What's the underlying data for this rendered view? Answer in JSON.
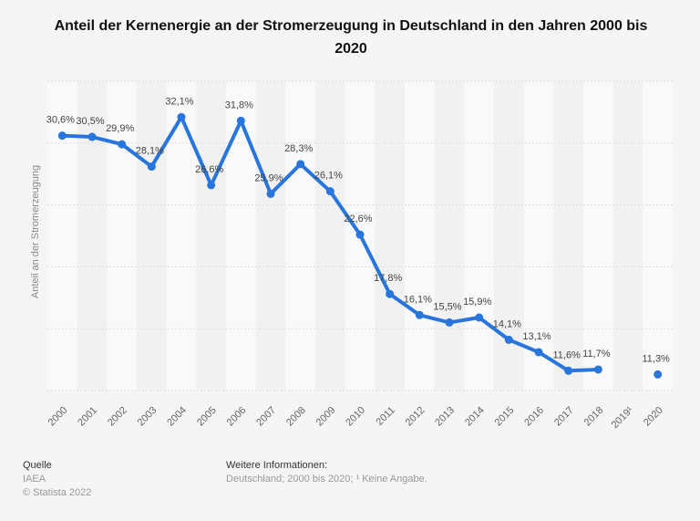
{
  "title": "Anteil der Kernenergie an der Stromerzeugung in Deutschland in den Jahren 2000 bis 2020",
  "chart_data": {
    "type": "line",
    "title": "Anteil der Kernenergie an der Stromerzeugung in Deutschland in den Jahren 2000 bis 2020",
    "xlabel": "",
    "ylabel": "Anteil an der Stromerzeugung",
    "ylim": [
      10,
      35
    ],
    "yticks": [
      10,
      15,
      20,
      25,
      30,
      35
    ],
    "grid": true,
    "categories": [
      "2000",
      "2001",
      "2002",
      "2003",
      "2004",
      "2005",
      "2006",
      "2007",
      "2008",
      "2009",
      "2010",
      "2011",
      "2012",
      "2013",
      "2014",
      "2015",
      "2016",
      "2017",
      "2018",
      "2019¹",
      "2020"
    ],
    "values": [
      30.6,
      30.5,
      29.9,
      28.1,
      32.1,
      26.6,
      31.8,
      25.9,
      28.3,
      26.1,
      22.6,
      17.8,
      16.1,
      15.5,
      15.9,
      14.1,
      13.1,
      11.6,
      11.7,
      null,
      11.3
    ],
    "labels": [
      "30,6%",
      "30,5%",
      "29,9%",
      "28,1%",
      "32,1%",
      "26,6%",
      "31,8%",
      "25,9%",
      "28,3%",
      "26,1%",
      "22,6%",
      "17,8%",
      "16,1%",
      "15,5%",
      "15,9%",
      "14,1%",
      "13,1%",
      "11,6%",
      "11,7%",
      "",
      "11,3%"
    ],
    "color": "#2876dd"
  },
  "footer": {
    "source_heading": "Quelle",
    "source": "IAEA",
    "copyright": "© Statista 2022",
    "info_heading": "Weitere Informationen:",
    "info": "Deutschland; 2000 bis 2020; ¹ Keine Angabe."
  }
}
